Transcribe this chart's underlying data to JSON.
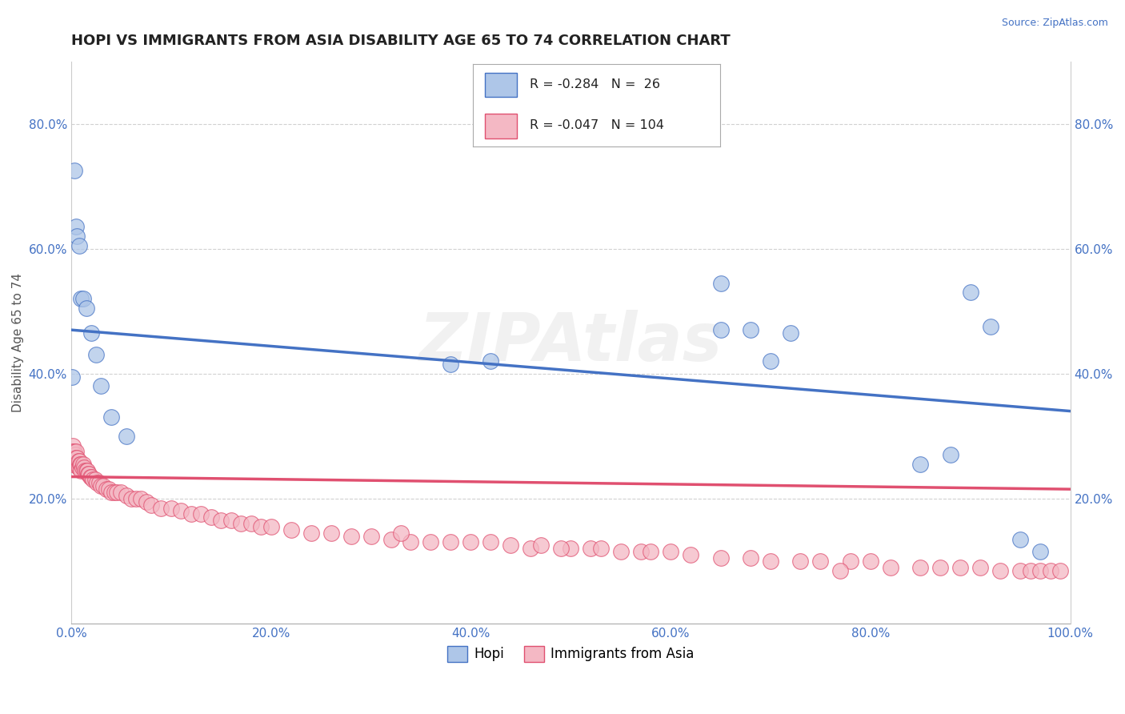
{
  "title": "HOPI VS IMMIGRANTS FROM ASIA DISABILITY AGE 65 TO 74 CORRELATION CHART",
  "source": "Source: ZipAtlas.com",
  "ylabel": "Disability Age 65 to 74",
  "watermark": "ZIPAtlas",
  "hopi": {
    "x": [
      0.001,
      0.003,
      0.005,
      0.006,
      0.008,
      0.01,
      0.012,
      0.015,
      0.02,
      0.025,
      0.03,
      0.04,
      0.055,
      0.38,
      0.42,
      0.65,
      0.7,
      0.85,
      0.88,
      0.9,
      0.92,
      0.95,
      0.97,
      0.65,
      0.68,
      0.72
    ],
    "y": [
      0.395,
      0.725,
      0.635,
      0.62,
      0.605,
      0.52,
      0.52,
      0.505,
      0.465,
      0.43,
      0.38,
      0.33,
      0.3,
      0.415,
      0.42,
      0.545,
      0.42,
      0.255,
      0.27,
      0.53,
      0.475,
      0.135,
      0.115,
      0.47,
      0.47,
      0.465
    ],
    "color": "#aec6e8",
    "edge_color": "#4472c4",
    "line_color": "#4472c4",
    "R": -0.284,
    "N": 26
  },
  "immigrants": {
    "x": [
      0.001,
      0.001,
      0.001,
      0.002,
      0.002,
      0.002,
      0.003,
      0.003,
      0.004,
      0.004,
      0.005,
      0.005,
      0.006,
      0.006,
      0.007,
      0.007,
      0.008,
      0.008,
      0.009,
      0.01,
      0.01,
      0.011,
      0.012,
      0.013,
      0.014,
      0.015,
      0.016,
      0.017,
      0.018,
      0.019,
      0.02,
      0.022,
      0.024,
      0.026,
      0.028,
      0.03,
      0.032,
      0.035,
      0.038,
      0.04,
      0.043,
      0.046,
      0.05,
      0.055,
      0.06,
      0.065,
      0.07,
      0.075,
      0.08,
      0.09,
      0.1,
      0.11,
      0.12,
      0.13,
      0.14,
      0.15,
      0.16,
      0.17,
      0.18,
      0.19,
      0.2,
      0.22,
      0.24,
      0.26,
      0.28,
      0.3,
      0.32,
      0.34,
      0.36,
      0.38,
      0.4,
      0.42,
      0.44,
      0.46,
      0.5,
      0.52,
      0.55,
      0.57,
      0.6,
      0.62,
      0.65,
      0.68,
      0.7,
      0.73,
      0.75,
      0.78,
      0.8,
      0.82,
      0.85,
      0.87,
      0.89,
      0.91,
      0.93,
      0.95,
      0.96,
      0.97,
      0.98,
      0.99,
      0.33,
      0.47,
      0.49,
      0.53,
      0.58,
      0.77
    ],
    "y": [
      0.275,
      0.265,
      0.255,
      0.285,
      0.275,
      0.265,
      0.275,
      0.265,
      0.27,
      0.26,
      0.275,
      0.265,
      0.265,
      0.255,
      0.26,
      0.25,
      0.26,
      0.25,
      0.255,
      0.255,
      0.245,
      0.25,
      0.255,
      0.25,
      0.245,
      0.245,
      0.245,
      0.24,
      0.24,
      0.235,
      0.235,
      0.23,
      0.23,
      0.225,
      0.225,
      0.22,
      0.22,
      0.215,
      0.215,
      0.21,
      0.21,
      0.21,
      0.21,
      0.205,
      0.2,
      0.2,
      0.2,
      0.195,
      0.19,
      0.185,
      0.185,
      0.18,
      0.175,
      0.175,
      0.17,
      0.165,
      0.165,
      0.16,
      0.16,
      0.155,
      0.155,
      0.15,
      0.145,
      0.145,
      0.14,
      0.14,
      0.135,
      0.13,
      0.13,
      0.13,
      0.13,
      0.13,
      0.125,
      0.12,
      0.12,
      0.12,
      0.115,
      0.115,
      0.115,
      0.11,
      0.105,
      0.105,
      0.1,
      0.1,
      0.1,
      0.1,
      0.1,
      0.09,
      0.09,
      0.09,
      0.09,
      0.09,
      0.085,
      0.085,
      0.085,
      0.085,
      0.085,
      0.085,
      0.145,
      0.125,
      0.12,
      0.12,
      0.115,
      0.085
    ],
    "color": "#f4b8c4",
    "edge_color": "#e05070",
    "line_color": "#e05070",
    "R": -0.047,
    "N": 104
  },
  "xlim": [
    0.0,
    1.0
  ],
  "ylim": [
    0.0,
    0.9
  ],
  "xticks": [
    0.0,
    0.2,
    0.4,
    0.6,
    0.8,
    1.0
  ],
  "xtick_labels": [
    "0.0%",
    "20.0%",
    "40.0%",
    "60.0%",
    "80.0%",
    "100.0%"
  ],
  "yticks_left": [
    0.2,
    0.4,
    0.6,
    0.8
  ],
  "ytick_labels": [
    "20.0%",
    "40.0%",
    "60.0%",
    "80.0%"
  ],
  "grid_color": "#cccccc",
  "background_color": "#ffffff",
  "legend_label1": "Hopi",
  "legend_label2": "Immigrants from Asia",
  "title_fontsize": 13,
  "axis_label_fontsize": 11,
  "tick_fontsize": 11,
  "source_color": "#4472c4",
  "hopi_trendline_start_x": 0.0,
  "hopi_trendline_start_y": 0.47,
  "hopi_trendline_end_x": 1.0,
  "hopi_trendline_end_y": 0.34,
  "imm_trendline_start_x": 0.0,
  "imm_trendline_start_y": 0.235,
  "imm_trendline_end_x": 1.0,
  "imm_trendline_end_y": 0.215
}
